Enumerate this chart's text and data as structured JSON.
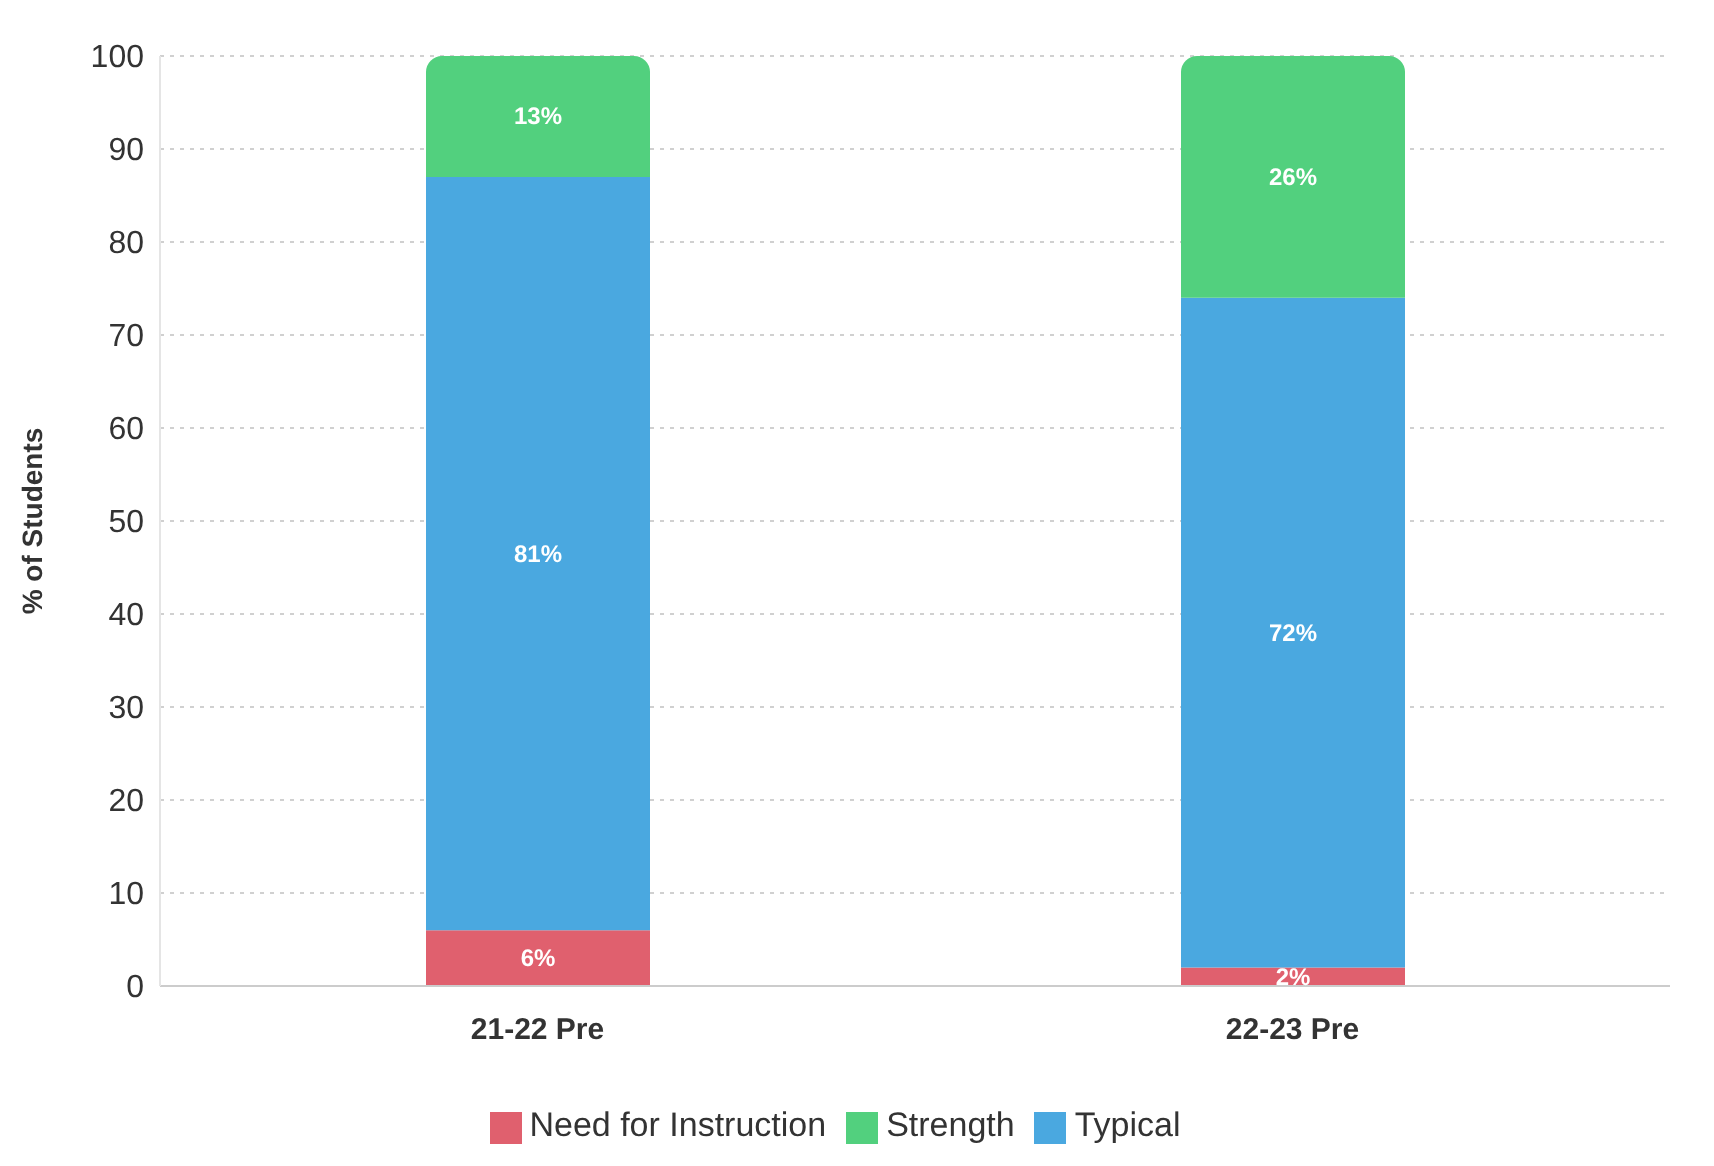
{
  "chart_data": {
    "type": "bar",
    "stacked": true,
    "ylabel": "% of Students",
    "categories": [
      "21-22 Pre",
      "22-23 Pre"
    ],
    "series": [
      {
        "name": "Need for Instruction",
        "color": "#e0606e",
        "values": [
          6,
          2
        ],
        "value_labels": [
          "6%",
          "2%"
        ]
      },
      {
        "name": "Typical",
        "color": "#4aa8e0",
        "values": [
          81,
          72
        ],
        "value_labels": [
          "81%",
          "72%"
        ]
      },
      {
        "name": "Strength",
        "color": "#52d07e",
        "values": [
          13,
          26
        ],
        "value_labels": [
          "13%",
          "26%"
        ]
      }
    ],
    "ylim": [
      0,
      100
    ],
    "yticks": [
      0,
      10,
      20,
      30,
      40,
      50,
      60,
      70,
      80,
      90,
      100
    ],
    "grid": "y",
    "legend": "bottom"
  }
}
